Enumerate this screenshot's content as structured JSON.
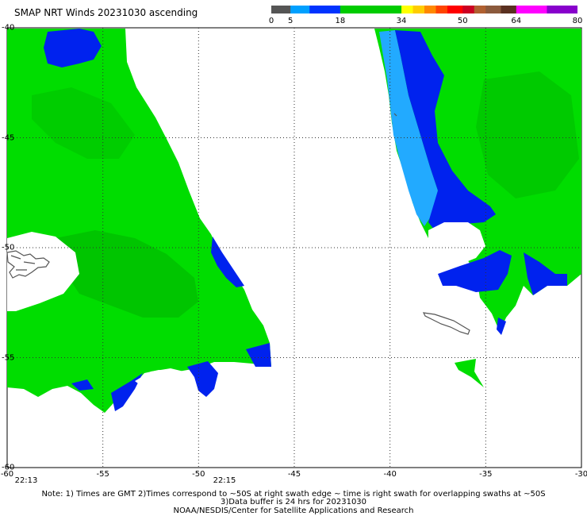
{
  "title": "SMAP NRT Winds 20231030 ascending",
  "colorbar": {
    "labels": [
      "0",
      "5",
      "18",
      "34",
      "50",
      "64",
      "80"
    ],
    "segments": [
      {
        "from": 0,
        "to": 5,
        "color": "#555555"
      },
      {
        "from": 5,
        "to": 10,
        "color": "#00a0ff"
      },
      {
        "from": 10,
        "to": 18,
        "color": "#0033ff"
      },
      {
        "from": 18,
        "to": 34,
        "color": "#00cc00"
      },
      {
        "from": 34,
        "to": 37,
        "color": "#ffff00"
      },
      {
        "from": 37,
        "to": 40,
        "color": "#ffcc00"
      },
      {
        "from": 40,
        "to": 43,
        "color": "#ff8800"
      },
      {
        "from": 43,
        "to": 46,
        "color": "#ff4400"
      },
      {
        "from": 46,
        "to": 50,
        "color": "#ff0000"
      },
      {
        "from": 50,
        "to": 53,
        "color": "#cc0022"
      },
      {
        "from": 53,
        "to": 56,
        "color": "#b06030"
      },
      {
        "from": 56,
        "to": 60,
        "color": "#8b5a3c"
      },
      {
        "from": 60,
        "to": 64,
        "color": "#5a3020"
      },
      {
        "from": 64,
        "to": 72,
        "color": "#ff00ff"
      },
      {
        "from": 72,
        "to": 80,
        "color": "#8800cc"
      }
    ]
  },
  "axes": {
    "lon_range": [
      -60,
      -30
    ],
    "lat_range": [
      -60,
      -40
    ],
    "x_ticks": [
      "-60",
      "-55",
      "-50",
      "-45",
      "-40",
      "-35",
      "-30"
    ],
    "y_ticks": [
      "-40",
      "-45",
      "-50",
      "-55",
      "-60"
    ],
    "grid": "dotted"
  },
  "times": [
    "22:13",
    "22:15"
  ],
  "colors": {
    "wind_green": "#00dd00",
    "wind_dark_green": "#00b000",
    "wind_blue": "#0022ee",
    "wind_light_blue": "#22aaff",
    "land_outline": "#555555"
  },
  "notes": {
    "line1": "Note: 1) Times are GMT 2)Times correspond to ~50S at right swath edge ~ time is right swath for overlapping swaths at ~50S",
    "line2": "3)Data buffer is 24 hrs for 20231030",
    "line3": "NOAA/NESDIS/Center for Satellite Applications and Research"
  }
}
